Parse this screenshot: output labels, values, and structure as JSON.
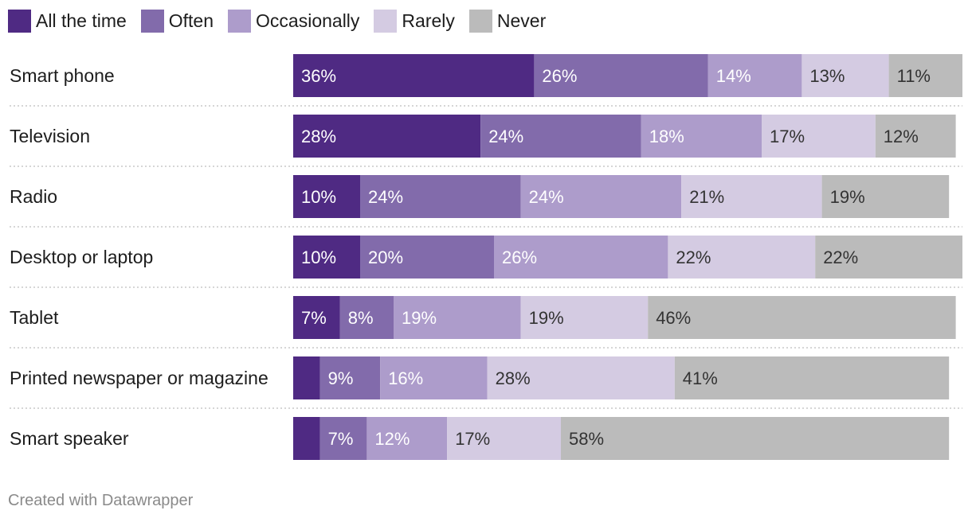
{
  "chart_data": {
    "type": "bar",
    "orientation": "horizontal",
    "stacked": true,
    "categories": [
      "Smart phone",
      "Television",
      "Radio",
      "Desktop or laptop",
      "Tablet",
      "Printed newspaper or magazine",
      "Smart speaker"
    ],
    "series": [
      {
        "name": "All the time",
        "color": "#4f2a83",
        "values": [
          36,
          28,
          10,
          10,
          7,
          4,
          4
        ],
        "labels": [
          "36%",
          "28%",
          "10%",
          "10%",
          "7%",
          "",
          ""
        ]
      },
      {
        "name": "Often",
        "color": "#826bab",
        "values": [
          26,
          24,
          24,
          20,
          8,
          9,
          7
        ],
        "labels": [
          "26%",
          "24%",
          "24%",
          "20%",
          "8%",
          "9%",
          "7%"
        ]
      },
      {
        "name": "Occasionally",
        "color": "#ad9ccb",
        "values": [
          14,
          18,
          24,
          26,
          19,
          16,
          12
        ],
        "labels": [
          "14%",
          "18%",
          "24%",
          "26%",
          "19%",
          "16%",
          "12%"
        ]
      },
      {
        "name": "Rarely",
        "color": "#d4cbe2",
        "values": [
          13,
          17,
          21,
          22,
          19,
          28,
          17
        ],
        "labels": [
          "13%",
          "17%",
          "21%",
          "22%",
          "19%",
          "28%",
          "17%"
        ]
      },
      {
        "name": "Never",
        "color": "#bbbbbb",
        "values": [
          11,
          12,
          19,
          22,
          46,
          41,
          58
        ],
        "labels": [
          "11%",
          "12%",
          "19%",
          "22%",
          "46%",
          "41%",
          "58%"
        ]
      }
    ],
    "legend_position": "top-left",
    "grid": false
  },
  "footer": {
    "credit": "Created with Datawrapper"
  }
}
